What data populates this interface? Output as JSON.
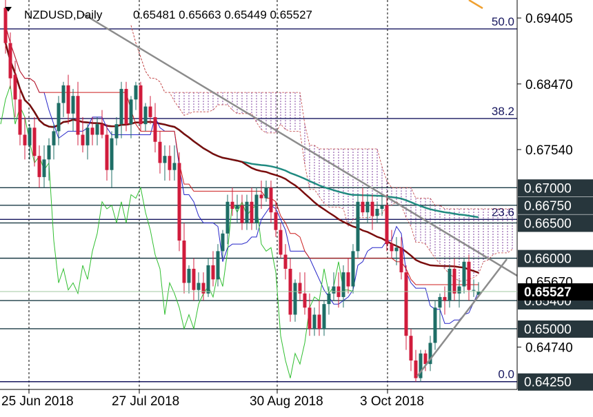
{
  "header": {
    "symbol_period": "NZDUSD,Daily",
    "ohlc": "0.65481 0.65663 0.65449 0.65527",
    "marker_icon": "triangle-down-icon"
  },
  "colors": {
    "bull_candle": "#1e6e66",
    "bear_candle": "#d01c3c",
    "level_line": "#1a3a44",
    "fib_line": "#16165e",
    "trendline": "#8c8c8c",
    "ma_slow": "#1f8a80",
    "ma_mid": "#7a0d0d",
    "tenkan": "#2323c8",
    "kijun": "#cc1b1b",
    "chikou": "#2fbe2f",
    "cloud": "#7c3c9c",
    "cloud_edge": "#c04040",
    "projection": "#e05030",
    "orange_line": "#f0a030",
    "price_box": "#000000"
  },
  "chart_data": {
    "type": "candlestick",
    "title": "NZDUSD,Daily",
    "ylim": [
      0.6414,
      0.6966
    ],
    "price_axis_ticks": [
      "0.69405",
      "0.68470",
      "0.67540",
      "0.64740"
    ],
    "level_labels": [
      "0.67000",
      "0.66750",
      "0.66500",
      "0.66000",
      "0.65400",
      "0.65000",
      "0.64250"
    ],
    "horizontal_levels": [
      0.67,
      0.6675,
      0.665,
      0.66,
      0.654,
      0.65,
      0.6425
    ],
    "partial_label": "0.65670",
    "current_price_label": "0.65527",
    "current_price": 0.65527,
    "fib_levels": [
      {
        "label": "50.0",
        "value": 0.6925
      },
      {
        "label": "38.2",
        "value": 0.6798
      },
      {
        "label": "23.6",
        "value": 0.6655
      },
      {
        "label": "0.0",
        "value": 0.6425
      }
    ],
    "x_labels": [
      "25 Jun 2018",
      "27 Jul 2018",
      "30 Aug 2018",
      "3 Oct 2018"
    ],
    "candles": [
      [
        0.6955,
        0.697,
        0.689,
        0.6905
      ],
      [
        0.6905,
        0.692,
        0.684,
        0.6855
      ],
      [
        0.686,
        0.688,
        0.68,
        0.6825
      ],
      [
        0.6825,
        0.684,
        0.676,
        0.6775
      ],
      [
        0.6775,
        0.68,
        0.674,
        0.676
      ],
      [
        0.676,
        0.679,
        0.674,
        0.6785
      ],
      [
        0.6785,
        0.68,
        0.673,
        0.6745
      ],
      [
        0.6745,
        0.676,
        0.67,
        0.6715
      ],
      [
        0.6715,
        0.676,
        0.67,
        0.674
      ],
      [
        0.674,
        0.677,
        0.671,
        0.676
      ],
      [
        0.676,
        0.679,
        0.674,
        0.678
      ],
      [
        0.678,
        0.683,
        0.676,
        0.682
      ],
      [
        0.682,
        0.685,
        0.68,
        0.6845
      ],
      [
        0.6845,
        0.686,
        0.679,
        0.6805
      ],
      [
        0.6805,
        0.684,
        0.678,
        0.683
      ],
      [
        0.683,
        0.685,
        0.676,
        0.6775
      ],
      [
        0.6775,
        0.68,
        0.675,
        0.676
      ],
      [
        0.676,
        0.679,
        0.674,
        0.6785
      ],
      [
        0.6785,
        0.68,
        0.676,
        0.6775
      ],
      [
        0.6775,
        0.68,
        0.676,
        0.679
      ],
      [
        0.679,
        0.681,
        0.677,
        0.6775
      ],
      [
        0.6775,
        0.679,
        0.671,
        0.6725
      ],
      [
        0.6725,
        0.678,
        0.67,
        0.677
      ],
      [
        0.677,
        0.68,
        0.676,
        0.679
      ],
      [
        0.679,
        0.685,
        0.677,
        0.684
      ],
      [
        0.684,
        0.685,
        0.678,
        0.679
      ],
      [
        0.679,
        0.683,
        0.677,
        0.6825
      ],
      [
        0.6825,
        0.685,
        0.681,
        0.6845
      ],
      [
        0.6845,
        0.685,
        0.678,
        0.679
      ],
      [
        0.679,
        0.682,
        0.678,
        0.6815
      ],
      [
        0.6815,
        0.683,
        0.679,
        0.68
      ],
      [
        0.68,
        0.682,
        0.675,
        0.6765
      ],
      [
        0.6765,
        0.678,
        0.672,
        0.6735
      ],
      [
        0.6735,
        0.676,
        0.671,
        0.6745
      ],
      [
        0.6745,
        0.676,
        0.671,
        0.6725
      ],
      [
        0.6725,
        0.676,
        0.671,
        0.6735
      ],
      [
        0.6735,
        0.675,
        0.661,
        0.6625
      ],
      [
        0.6625,
        0.665,
        0.655,
        0.6565
      ],
      [
        0.6565,
        0.659,
        0.655,
        0.6585
      ],
      [
        0.6585,
        0.66,
        0.654,
        0.6555
      ],
      [
        0.6555,
        0.658,
        0.654,
        0.6565
      ],
      [
        0.6565,
        0.658,
        0.654,
        0.655
      ],
      [
        0.655,
        0.66,
        0.6545,
        0.659
      ],
      [
        0.659,
        0.661,
        0.656,
        0.657
      ],
      [
        0.657,
        0.662,
        0.656,
        0.661
      ],
      [
        0.661,
        0.664,
        0.66,
        0.6635
      ],
      [
        0.6635,
        0.669,
        0.662,
        0.668
      ],
      [
        0.668,
        0.67,
        0.666,
        0.667
      ],
      [
        0.667,
        0.669,
        0.665,
        0.6675
      ],
      [
        0.6675,
        0.669,
        0.664,
        0.665
      ],
      [
        0.665,
        0.669,
        0.664,
        0.668
      ],
      [
        0.668,
        0.67,
        0.664,
        0.665
      ],
      [
        0.665,
        0.67,
        0.664,
        0.669
      ],
      [
        0.669,
        0.671,
        0.667,
        0.6685
      ],
      [
        0.6685,
        0.671,
        0.668,
        0.67
      ],
      [
        0.67,
        0.671,
        0.665,
        0.6665
      ],
      [
        0.6665,
        0.668,
        0.663,
        0.664
      ],
      [
        0.664,
        0.665,
        0.66,
        0.6605
      ],
      [
        0.6605,
        0.662,
        0.657,
        0.6585
      ],
      [
        0.6585,
        0.66,
        0.651,
        0.652
      ],
      [
        0.652,
        0.657,
        0.651,
        0.6565
      ],
      [
        0.6565,
        0.658,
        0.654,
        0.655
      ],
      [
        0.655,
        0.658,
        0.652,
        0.653
      ],
      [
        0.653,
        0.655,
        0.649,
        0.65
      ],
      [
        0.65,
        0.653,
        0.649,
        0.652
      ],
      [
        0.652,
        0.654,
        0.649,
        0.65
      ],
      [
        0.65,
        0.654,
        0.649,
        0.6535
      ],
      [
        0.6535,
        0.656,
        0.652,
        0.655
      ],
      [
        0.655,
        0.658,
        0.654,
        0.656
      ],
      [
        0.656,
        0.658,
        0.653,
        0.6545
      ],
      [
        0.6545,
        0.659,
        0.653,
        0.658
      ],
      [
        0.658,
        0.66,
        0.655,
        0.656
      ],
      [
        0.656,
        0.662,
        0.655,
        0.661
      ],
      [
        0.661,
        0.669,
        0.66,
        0.668
      ],
      [
        0.668,
        0.67,
        0.666,
        0.6665
      ],
      [
        0.6665,
        0.669,
        0.665,
        0.668
      ],
      [
        0.668,
        0.669,
        0.664,
        0.666
      ],
      [
        0.666,
        0.668,
        0.665,
        0.667
      ],
      [
        0.667,
        0.669,
        0.666,
        0.6675
      ],
      [
        0.6675,
        0.669,
        0.661,
        0.662
      ],
      [
        0.662,
        0.664,
        0.66,
        0.661
      ],
      [
        0.661,
        0.663,
        0.659,
        0.6615
      ],
      [
        0.6615,
        0.663,
        0.657,
        0.658
      ],
      [
        0.658,
        0.659,
        0.647,
        0.649
      ],
      [
        0.649,
        0.65,
        0.644,
        0.6455
      ],
      [
        0.6455,
        0.647,
        0.6425,
        0.643
      ],
      [
        0.643,
        0.647,
        0.6425,
        0.6465
      ],
      [
        0.6465,
        0.647,
        0.644,
        0.645
      ],
      [
        0.645,
        0.649,
        0.644,
        0.648
      ],
      [
        0.648,
        0.654,
        0.647,
        0.653
      ],
      [
        0.653,
        0.655,
        0.65,
        0.6545
      ],
      [
        0.6545,
        0.656,
        0.652,
        0.654
      ],
      [
        0.654,
        0.659,
        0.653,
        0.6585
      ],
      [
        0.6585,
        0.66,
        0.654,
        0.655
      ],
      [
        0.655,
        0.657,
        0.653,
        0.656
      ],
      [
        0.656,
        0.66,
        0.655,
        0.6595
      ],
      [
        0.6595,
        0.6605,
        0.654,
        0.6555
      ],
      [
        0.6555,
        0.657,
        0.6545,
        0.6555
      ],
      [
        0.6548,
        0.6566,
        0.6545,
        0.6553
      ]
    ]
  }
}
